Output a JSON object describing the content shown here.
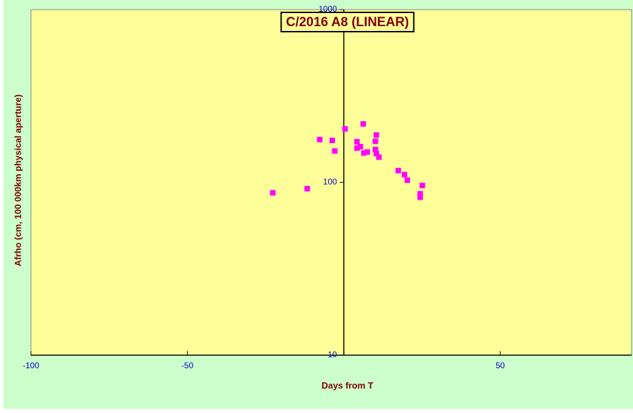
{
  "chart_data": {
    "type": "scatter",
    "title": "C/2016 A8 (LINEAR)",
    "x_label": "Days from T",
    "y_label": "Afrho (cm, 100 000km physical aperture)",
    "y_scale": "log",
    "color": "#ff00ff",
    "xlim": [
      -100,
      92
    ],
    "xticks": [
      -100,
      -50,
      50
    ],
    "ylim": [
      10,
      1000
    ],
    "yticks": [
      10,
      100,
      1000
    ],
    "x": [
      -22.7,
      -11.7,
      -7.7,
      -3.7,
      -2.9,
      0.4,
      4.2,
      4.2,
      5.3,
      6.2,
      6.4,
      7.5,
      10.4,
      10.1,
      10.1,
      10.4,
      11.2,
      17.4,
      19.4,
      20.3,
      25.1,
      24.4,
      24.4
    ],
    "values": [
      87,
      92,
      177,
      175,
      152,
      204,
      172,
      158,
      161,
      218,
      148,
      150,
      188,
      173,
      155,
      147,
      140,
      117,
      111,
      103,
      96,
      86,
      82
    ]
  }
}
